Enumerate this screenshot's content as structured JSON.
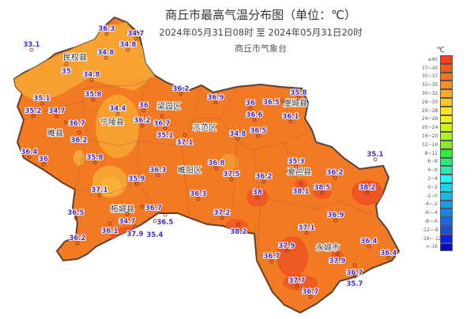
{
  "header": {
    "title": "商丘市最高气温分布图（单位：℃）",
    "subtitle": "2024年05月31日08时  至  2024年05月31日20时",
    "org": "商丘市气象台"
  },
  "legend": {
    "unit": "℃",
    "items": [
      {
        "label": "≥40",
        "color": "#f5401c"
      },
      {
        "label": "37~40",
        "color": "#f55a1e"
      },
      {
        "label": "35~37",
        "color": "#f57424"
      },
      {
        "label": "32~35",
        "color": "#f78f26"
      },
      {
        "label": "30~32",
        "color": "#f9aa24"
      },
      {
        "label": "28~30",
        "color": "#fac623"
      },
      {
        "label": "26~28",
        "color": "#fde21f"
      },
      {
        "label": "24~26",
        "color": "#eef21c"
      },
      {
        "label": "20~24",
        "color": "#cdf21f"
      },
      {
        "label": "16~20",
        "color": "#aaf224"
      },
      {
        "label": "12~16",
        "color": "#86ee28"
      },
      {
        "label": "8~12",
        "color": "#30ea3c"
      },
      {
        "label": "6~8",
        "color": "#2ee87a"
      },
      {
        "label": "4~6",
        "color": "#28ecb4"
      },
      {
        "label": "2~4",
        "color": "#21fafa"
      },
      {
        "label": "0~2",
        "color": "#19d6ee"
      },
      {
        "label": "-2~0",
        "color": "#18bae6"
      },
      {
        "label": "-4~-2",
        "color": "#189ee2"
      },
      {
        "label": "-6~-4",
        "color": "#1a84e0"
      },
      {
        "label": "-8~-6",
        "color": "#1a68dc"
      },
      {
        "label": "-12~-8",
        "color": "#1a4ed8"
      },
      {
        "label": "-16~-12",
        "color": "#0a1ef0"
      },
      {
        "label": "<-16",
        "color": "#0c0cb8"
      }
    ]
  },
  "counties": [
    "民权县",
    "宁陵县",
    "梁园区",
    "睢县",
    "虞城县",
    "示范区",
    "夏邑县",
    "睢阳区",
    "柘城县",
    "永城市"
  ],
  "stations": [
    "33.1",
    "36.3",
    "34.7",
    "34.8",
    "34.8",
    "35",
    "34.8",
    "35.8",
    "35.1",
    "35.2",
    "34.7",
    "36.7",
    "36.2",
    "34.4",
    "36",
    "36.2",
    "36.7",
    "35.1",
    "37.1",
    "36.2",
    "36.4",
    "36",
    "35.8",
    "36.9",
    "36",
    "36.6",
    "36.5",
    "35.8",
    "36.1",
    "34.8",
    "36.5",
    "36.8",
    "37.5",
    "36.2",
    "35.3",
    "38.1",
    "38.5",
    "36.2",
    "35.1",
    "38.2",
    "38",
    "36.3",
    "36.3",
    "35.9",
    "37.1",
    "36.7",
    "34.7",
    "36.5",
    "35.4",
    "36.1",
    "37.9",
    "36.5",
    "36.2",
    "37.2",
    "38.2",
    "36.9",
    "37.1",
    "37.9",
    "36.7",
    "37.9",
    "36.4",
    "36.4",
    "36.7",
    "35.7",
    "37.7",
    "36.7"
  ]
}
